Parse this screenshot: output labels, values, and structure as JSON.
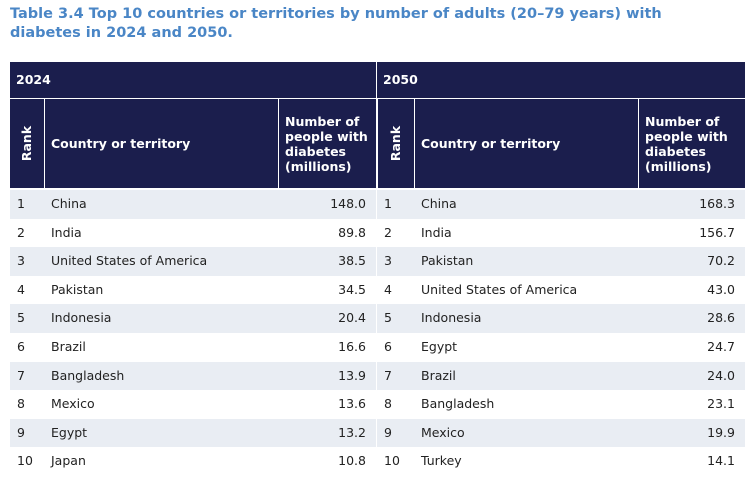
{
  "title": "Table 3.4 Top 10 countries or territories by number of adults (20–79 years) with diabetes in 2024 and 2050.",
  "tables": [
    {
      "year": "2024",
      "headers": [
        "Rank",
        "Country or territory",
        "Number of people with diabetes (millions)"
      ],
      "rows": [
        [
          "1",
          "China",
          "148.0"
        ],
        [
          "2",
          "India",
          "89.8"
        ],
        [
          "3",
          "United States of America",
          "38.5"
        ],
        [
          "4",
          "Pakistan",
          "34.5"
        ],
        [
          "5",
          "Indonesia",
          "20.4"
        ],
        [
          "6",
          "Brazil",
          "16.6"
        ],
        [
          "7",
          "Bangladesh",
          "13.9"
        ],
        [
          "8",
          "Mexico",
          "13.6"
        ],
        [
          "9",
          "Egypt",
          "13.2"
        ],
        [
          "10",
          "Japan",
          "10.8"
        ]
      ]
    },
    {
      "year": "2050",
      "headers": [
        "Rank",
        "Country or territory",
        "Number of people with diabetes (millions)"
      ],
      "rows": [
        [
          "1",
          "China",
          "168.3"
        ],
        [
          "2",
          "India",
          "156.7"
        ],
        [
          "3",
          "Pakistan",
          "70.2"
        ],
        [
          "4",
          "United States of America",
          "43.0"
        ],
        [
          "5",
          "Indonesia",
          "28.6"
        ],
        [
          "6",
          "Egypt",
          "24.7"
        ],
        [
          "7",
          "Brazil",
          "24.0"
        ],
        [
          "8",
          "Bangladesh",
          "23.1"
        ],
        [
          "9",
          "Mexico",
          "19.9"
        ],
        [
          "10",
          "Turkey",
          "14.1"
        ]
      ]
    }
  ]
}
